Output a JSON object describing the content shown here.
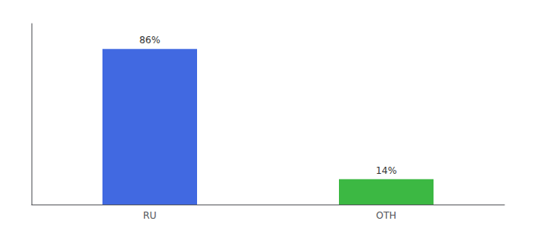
{
  "chart_data": {
    "type": "bar",
    "categories": [
      "RU",
      "OTH"
    ],
    "values": [
      86,
      14
    ],
    "value_labels": [
      "86%",
      "14%"
    ],
    "colors": [
      "#4169e1",
      "#3cb843"
    ],
    "ylim": [
      0,
      100
    ],
    "grid": false,
    "data_labels": true,
    "tick_labels": "x"
  }
}
